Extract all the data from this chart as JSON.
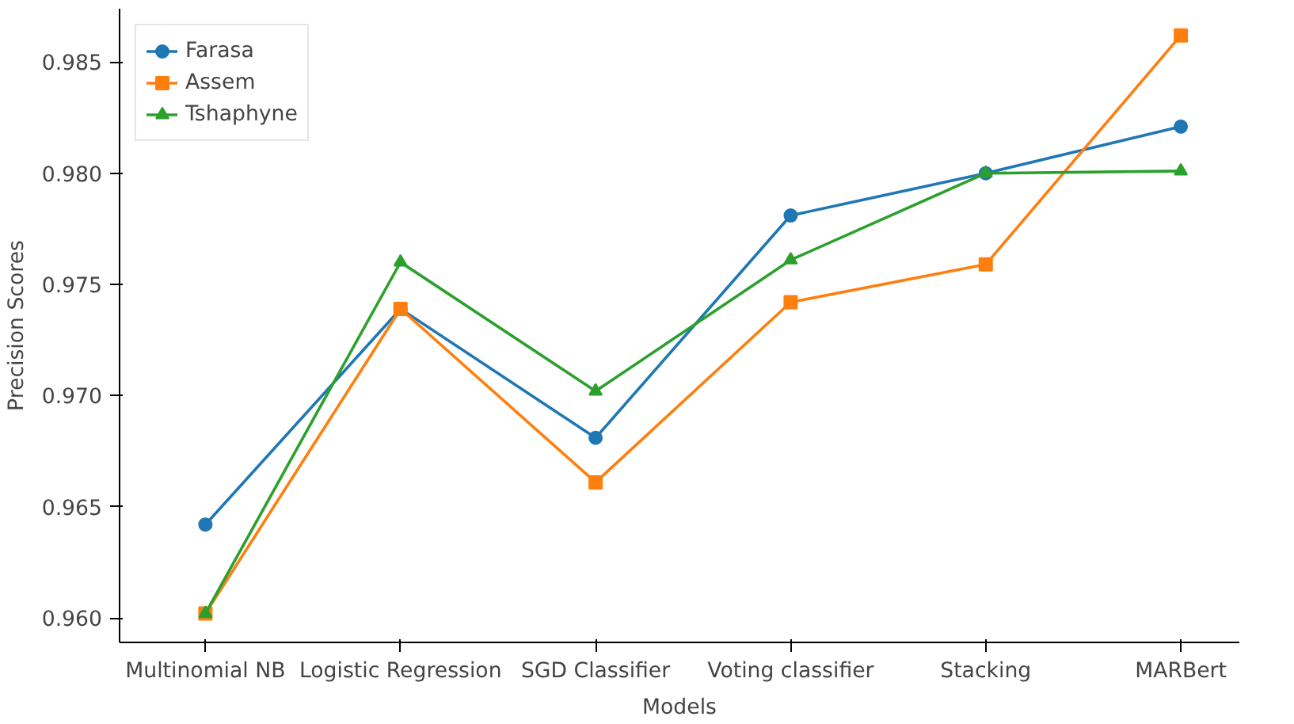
{
  "chart_data": {
    "type": "line",
    "xlabel": "Models",
    "ylabel": "Precision Scores",
    "categories": [
      "Multinomial NB",
      "Logistic Regression",
      "SGD Classifier",
      "Voting classifier",
      "Stacking",
      "MARBert"
    ],
    "series": [
      {
        "name": "Farasa",
        "color": "#1f77b4",
        "marker": "circle",
        "values": [
          0.9642,
          0.9739,
          0.9681,
          0.9781,
          0.98,
          0.9821
        ]
      },
      {
        "name": "Assem",
        "color": "#ff7f0e",
        "marker": "square",
        "values": [
          0.9602,
          0.9739,
          0.9661,
          0.9742,
          0.9759,
          0.9862
        ]
      },
      {
        "name": "Tshaphyne",
        "color": "#2ca02c",
        "marker": "triangle",
        "values": [
          0.9602,
          0.976,
          0.9702,
          0.9761,
          0.98,
          0.9801
        ]
      }
    ],
    "ylim": [
      0.9589,
      0.9874
    ],
    "yticks": [
      {
        "value": 0.96,
        "label": "0.960"
      },
      {
        "value": 0.965,
        "label": "0.965"
      },
      {
        "value": 0.97,
        "label": "0.970"
      },
      {
        "value": 0.975,
        "label": "0.975"
      },
      {
        "value": 0.98,
        "label": "0.980"
      },
      {
        "value": 0.985,
        "label": "0.985"
      }
    ],
    "grid": false,
    "legend": "top left",
    "line_style": "solid"
  }
}
